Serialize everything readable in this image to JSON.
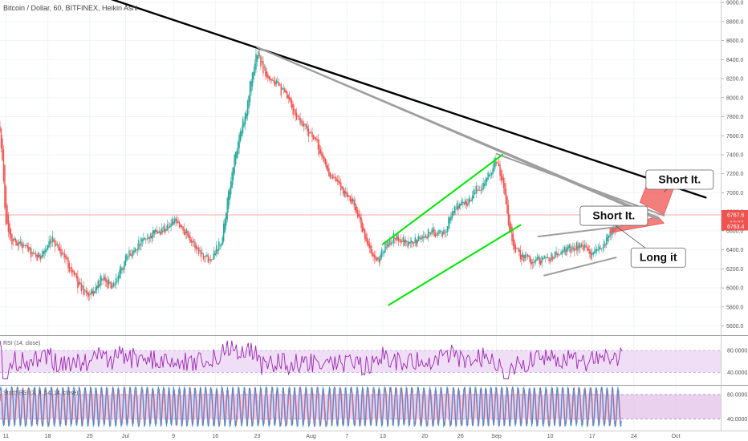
{
  "header": {
    "title": "Bitcoin / Dollar, 60, BITFINEX, Heikin Ashi"
  },
  "chart_data": {
    "type": "candlestick",
    "price_axis": {
      "ticks": [
        5600,
        5800,
        6000,
        6200,
        6400,
        6600,
        6800,
        7000,
        7200,
        7400,
        7600,
        7800,
        8000,
        8200,
        8400,
        8600,
        8800,
        9000
      ],
      "tick_labels": [
        "5600.0",
        "5800.0",
        "6000.0",
        "6200.0",
        "6400.0",
        "6600.0",
        "6800.0",
        "7000.0",
        "7200.0",
        "7400.0",
        "7600.0",
        "7800.0",
        "8000.0",
        "8200.0",
        "8400.0",
        "8600.0",
        "8800.0",
        "9000.0"
      ],
      "range": [
        5520,
        9010
      ],
      "current_price": "6767.6",
      "countdown": "13:27",
      "second_price": "6763.4",
      "current_price_color": "#ef5350"
    },
    "time_axis": {
      "ticks": [
        {
          "label": "11",
          "day": 11
        },
        {
          "label": "18",
          "day": 18
        },
        {
          "label": "25",
          "day": 25
        },
        {
          "label": "Jul",
          "day": 31
        },
        {
          "label": "9",
          "day": 39
        },
        {
          "label": "16",
          "day": 46
        },
        {
          "label": "23",
          "day": 53
        },
        {
          "label": "Aug",
          "day": 62
        },
        {
          "label": "7",
          "day": 68
        },
        {
          "label": "13",
          "day": 74
        },
        {
          "label": "20",
          "day": 81
        },
        {
          "label": "26",
          "day": 87
        },
        {
          "label": "Sep",
          "day": 93
        },
        {
          "label": "10",
          "day": 102
        },
        {
          "label": "17",
          "day": 109
        },
        {
          "label": "24",
          "day": 116
        },
        {
          "label": "Oct",
          "day": 123
        }
      ],
      "range": [
        10,
        130.5
      ]
    },
    "price_anchors": [
      [
        10,
        7700
      ],
      [
        11,
        6700
      ],
      [
        12,
        6500
      ],
      [
        14,
        6450
      ],
      [
        16,
        6300
      ],
      [
        19,
        6500
      ],
      [
        21,
        6300
      ],
      [
        23,
        6050
      ],
      [
        25,
        5900
      ],
      [
        27,
        6100
      ],
      [
        29,
        6000
      ],
      [
        31,
        6300
      ],
      [
        33,
        6450
      ],
      [
        35,
        6550
      ],
      [
        37,
        6600
      ],
      [
        39,
        6700
      ],
      [
        41,
        6600
      ],
      [
        43,
        6400
      ],
      [
        45,
        6300
      ],
      [
        47,
        6500
      ],
      [
        48,
        6900
      ],
      [
        49,
        7300
      ],
      [
        50,
        7600
      ],
      [
        51,
        7800
      ],
      [
        52,
        8200
      ],
      [
        53,
        8480
      ],
      [
        54,
        8300
      ],
      [
        56,
        8150
      ],
      [
        58,
        8000
      ],
      [
        59,
        7850
      ],
      [
        61,
        7700
      ],
      [
        63,
        7500
      ],
      [
        65,
        7200
      ],
      [
        67,
        7050
      ],
      [
        69,
        6900
      ],
      [
        71,
        6550
      ],
      [
        72,
        6350
      ],
      [
        73,
        6250
      ],
      [
        74,
        6400
      ],
      [
        76,
        6550
      ],
      [
        78,
        6450
      ],
      [
        80,
        6500
      ],
      [
        82,
        6600
      ],
      [
        84,
        6550
      ],
      [
        86,
        6850
      ],
      [
        88,
        6900
      ],
      [
        90,
        7050
      ],
      [
        92,
        7200
      ],
      [
        93,
        7350
      ],
      [
        94,
        7100
      ],
      [
        95,
        6700
      ],
      [
        96,
        6400
      ],
      [
        97,
        6350
      ],
      [
        99,
        6280
      ],
      [
        101,
        6300
      ],
      [
        103,
        6350
      ],
      [
        105,
        6400
      ],
      [
        107,
        6450
      ],
      [
        109,
        6350
      ],
      [
        111,
        6450
      ],
      [
        112,
        6550
      ],
      [
        113,
        6660
      ],
      [
        114,
        6760
      ]
    ],
    "rsi": {
      "label": "RSI (14, close)",
      "ticks": [
        "80.0000",
        "40.0000"
      ],
      "levels": [
        70,
        30
      ],
      "range": [
        10,
        95
      ],
      "line_color": "#9c27b0"
    },
    "stoch_rsi": {
      "label": "Stoch RSI (3, 3, 14, 14, close)",
      "ticks": [
        "80.0000",
        "40.0000"
      ],
      "levels": [
        80,
        20
      ],
      "range": [
        -5,
        100
      ],
      "k_color": "#2196f3",
      "d_color": "#ef5350"
    },
    "lines": [
      {
        "name": "main-trendline",
        "color": "#000000",
        "from": [
          26,
          9090
        ],
        "to": [
          128,
          6950
        ]
      },
      {
        "name": "grey-trendline-1",
        "color": "#9e9e9e",
        "from": [
          53,
          8530
        ],
        "to": [
          120,
          6720
        ]
      },
      {
        "name": "grey-trendline-2",
        "color": "#9e9e9e",
        "from": [
          53,
          8530
        ],
        "to": [
          120,
          6740
        ]
      },
      {
        "name": "grey-trendline-3",
        "color": "#9e9e9e",
        "from": [
          93,
          7410
        ],
        "to": [
          121,
          6760
        ]
      },
      {
        "name": "channel-upper",
        "color": "#00e600",
        "from": [
          74,
          6460
        ],
        "to": [
          94,
          7400
        ]
      },
      {
        "name": "channel-lower",
        "color": "#00e600",
        "from": [
          75,
          5820
        ],
        "to": [
          97,
          6660
        ]
      },
      {
        "name": "wedge-upper",
        "color": "#9e9e9e",
        "from": [
          100,
          6540
        ],
        "to": [
          113,
          6640
        ]
      },
      {
        "name": "wedge-lower",
        "color": "#9e9e9e",
        "from": [
          101,
          6130
        ],
        "to": [
          113,
          6320
        ]
      }
    ],
    "zones": [
      {
        "name": "short-zone-upper",
        "color": "#ef5350",
        "corners": [
          [
            117,
            6900
          ],
          [
            119,
            7230
          ],
          [
            123,
            7110
          ],
          [
            121,
            6770
          ]
        ]
      },
      {
        "name": "short-zone-lower",
        "color": "#ef5350",
        "corners": [
          [
            112,
            6620
          ],
          [
            120,
            6750
          ],
          [
            121,
            6680
          ],
          [
            112,
            6580
          ]
        ]
      }
    ],
    "annotations": [
      {
        "text": "Short It.",
        "anchor": [
          121,
          7010
        ],
        "box": [
          118,
          7240
        ]
      },
      {
        "text": "Short It.",
        "anchor": [
          114,
          6740
        ],
        "box": [
          107,
          6860
        ]
      },
      {
        "text": "Long it",
        "anchor": [
          113,
          6650
        ],
        "box": [
          115.5,
          6420
        ]
      }
    ]
  }
}
